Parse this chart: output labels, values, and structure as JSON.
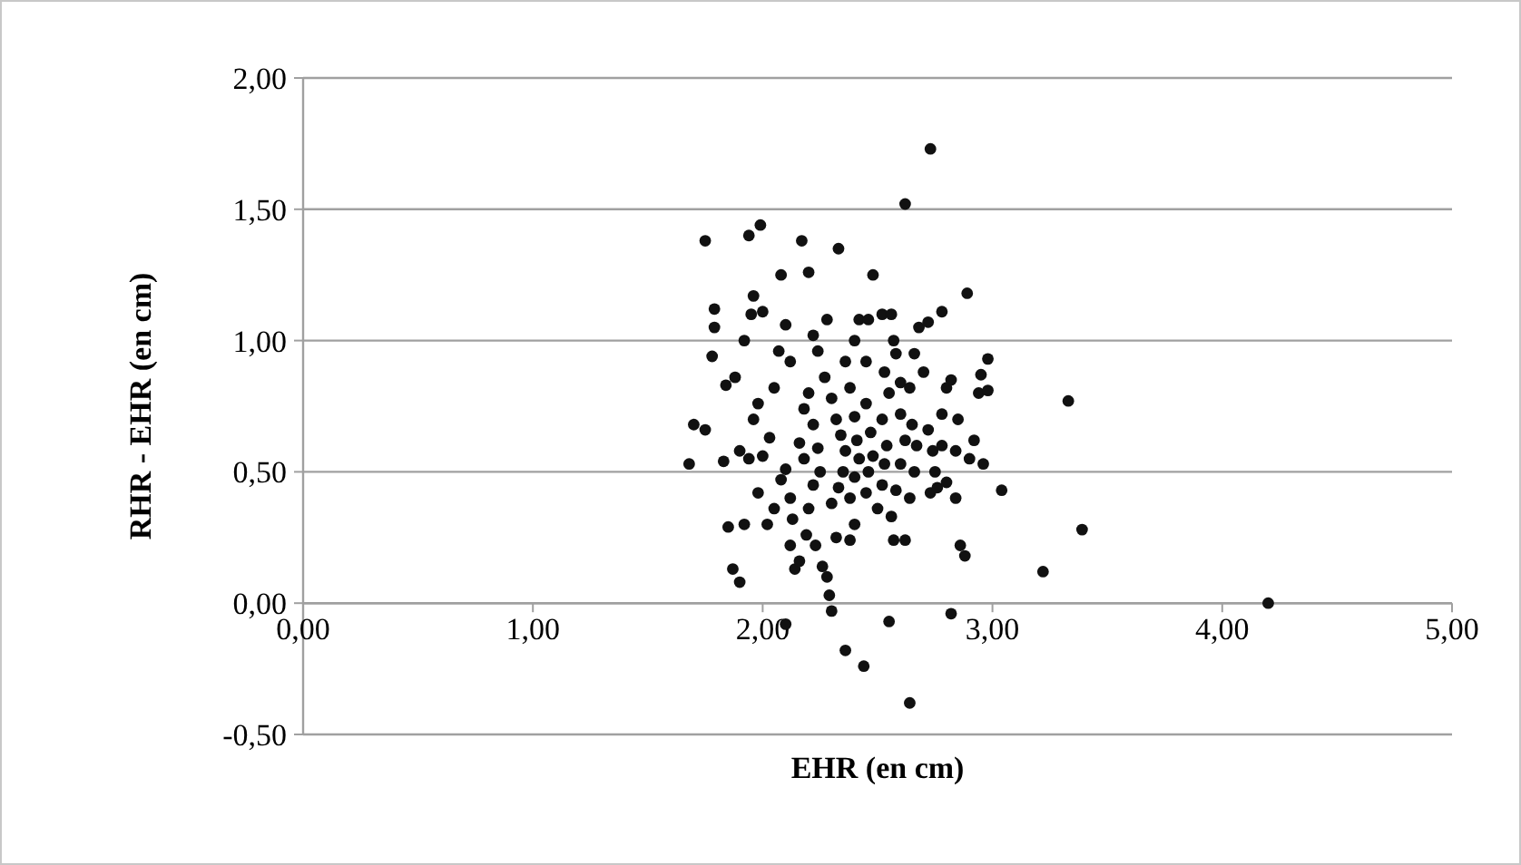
{
  "chart_data": {
    "type": "scatter",
    "xlabel": "EHR (en cm)",
    "ylabel": "RHR - EHR (en cm)",
    "xlim": [
      0,
      5
    ],
    "ylim": [
      -0.5,
      2
    ],
    "xticks": [
      {
        "value": 0,
        "label": "0,00"
      },
      {
        "value": 1,
        "label": "1,00"
      },
      {
        "value": 2,
        "label": "2,00"
      },
      {
        "value": 3,
        "label": "3,00"
      },
      {
        "value": 4,
        "label": "4,00"
      },
      {
        "value": 5,
        "label": "5,00"
      }
    ],
    "yticks": [
      {
        "value": -0.5,
        "label": "-0,50"
      },
      {
        "value": 0,
        "label": "0,00"
      },
      {
        "value": 0.5,
        "label": "0,50"
      },
      {
        "value": 1,
        "label": "1,00"
      },
      {
        "value": 1.5,
        "label": "1,50"
      },
      {
        "value": 2,
        "label": "2,00"
      }
    ],
    "grid": "y",
    "marker": "circle",
    "series": [
      {
        "color": "#111111",
        "x": [
          2.73,
          2.62,
          2.33,
          2.48,
          2.89,
          2.78,
          1.75,
          1.94,
          1.99,
          2.17,
          2.08,
          2.2,
          3.04,
          3.39,
          3.22,
          3.33,
          4.2,
          2.64,
          2.44,
          2.36,
          2.1,
          2.82,
          2.55,
          2.3,
          1.68,
          1.7,
          1.75,
          1.78,
          1.79,
          1.79,
          1.83,
          1.85,
          1.87,
          1.9,
          1.92,
          1.84,
          1.88,
          1.92,
          1.95,
          1.96,
          2.0,
          1.98,
          1.96,
          1.94,
          1.9,
          1.98,
          2.02,
          2.05,
          2.0,
          2.03,
          2.05,
          2.07,
          2.1,
          2.12,
          2.08,
          2.1,
          2.12,
          2.13,
          2.12,
          2.14,
          2.16,
          2.18,
          2.16,
          2.18,
          2.2,
          2.22,
          2.24,
          2.25,
          2.22,
          2.2,
          2.19,
          2.23,
          2.26,
          2.28,
          2.29,
          2.27,
          2.24,
          2.22,
          2.28,
          2.3,
          2.32,
          2.34,
          2.36,
          2.35,
          2.33,
          2.3,
          2.32,
          2.38,
          2.4,
          2.38,
          2.4,
          2.42,
          2.41,
          2.4,
          2.38,
          2.36,
          2.4,
          2.42,
          2.46,
          2.45,
          2.45,
          2.47,
          2.48,
          2.46,
          2.45,
          2.5,
          2.52,
          2.53,
          2.54,
          2.52,
          2.55,
          2.53,
          2.52,
          2.56,
          2.57,
          2.58,
          2.6,
          2.6,
          2.62,
          2.6,
          2.58,
          2.56,
          2.57,
          2.62,
          2.64,
          2.66,
          2.67,
          2.65,
          2.64,
          2.66,
          2.68,
          2.72,
          2.7,
          2.72,
          2.74,
          2.75,
          2.73,
          2.76,
          2.8,
          2.78,
          2.78,
          2.8,
          2.82,
          2.85,
          2.84,
          2.84,
          2.86,
          2.88,
          2.9,
          2.92,
          2.94,
          2.95,
          2.96,
          2.98,
          2.98
        ],
        "values": [
          1.73,
          1.52,
          1.35,
          1.25,
          1.18,
          1.11,
          1.38,
          1.4,
          1.44,
          1.38,
          1.25,
          1.26,
          0.43,
          0.28,
          0.12,
          0.77,
          0,
          -0.38,
          -0.24,
          -0.18,
          -0.08,
          -0.04,
          -0.07,
          -0.03,
          0.53,
          0.68,
          0.66,
          0.94,
          1.05,
          1.12,
          0.54,
          0.29,
          0.13,
          0.08,
          0.3,
          0.83,
          0.86,
          1.0,
          1.1,
          1.17,
          1.11,
          0.76,
          0.7,
          0.55,
          0.58,
          0.42,
          0.3,
          0.36,
          0.56,
          0.63,
          0.82,
          0.96,
          1.06,
          0.92,
          0.47,
          0.51,
          0.4,
          0.32,
          0.22,
          0.13,
          0.16,
          0.55,
          0.61,
          0.74,
          0.8,
          0.68,
          0.59,
          0.5,
          0.45,
          0.36,
          0.26,
          0.22,
          0.14,
          0.1,
          0.03,
          0.86,
          0.96,
          1.02,
          1.08,
          0.78,
          0.7,
          0.64,
          0.58,
          0.5,
          0.44,
          0.38,
          0.25,
          0.24,
          0.3,
          0.4,
          0.48,
          0.55,
          0.62,
          0.71,
          0.82,
          0.92,
          1.0,
          1.08,
          1.08,
          0.92,
          0.76,
          0.65,
          0.56,
          0.5,
          0.42,
          0.36,
          0.45,
          0.53,
          0.6,
          0.7,
          0.8,
          0.88,
          1.1,
          1.1,
          1.0,
          0.95,
          0.84,
          0.72,
          0.62,
          0.53,
          0.43,
          0.33,
          0.24,
          0.24,
          0.4,
          0.5,
          0.6,
          0.68,
          0.82,
          0.95,
          1.05,
          1.07,
          0.88,
          0.66,
          0.58,
          0.5,
          0.42,
          0.44,
          0.46,
          0.6,
          0.72,
          0.82,
          0.85,
          0.7,
          0.58,
          0.4,
          0.22,
          0.18,
          0.55,
          0.62,
          0.8,
          0.87,
          0.53,
          0.93,
          0.81
        ]
      }
    ]
  }
}
